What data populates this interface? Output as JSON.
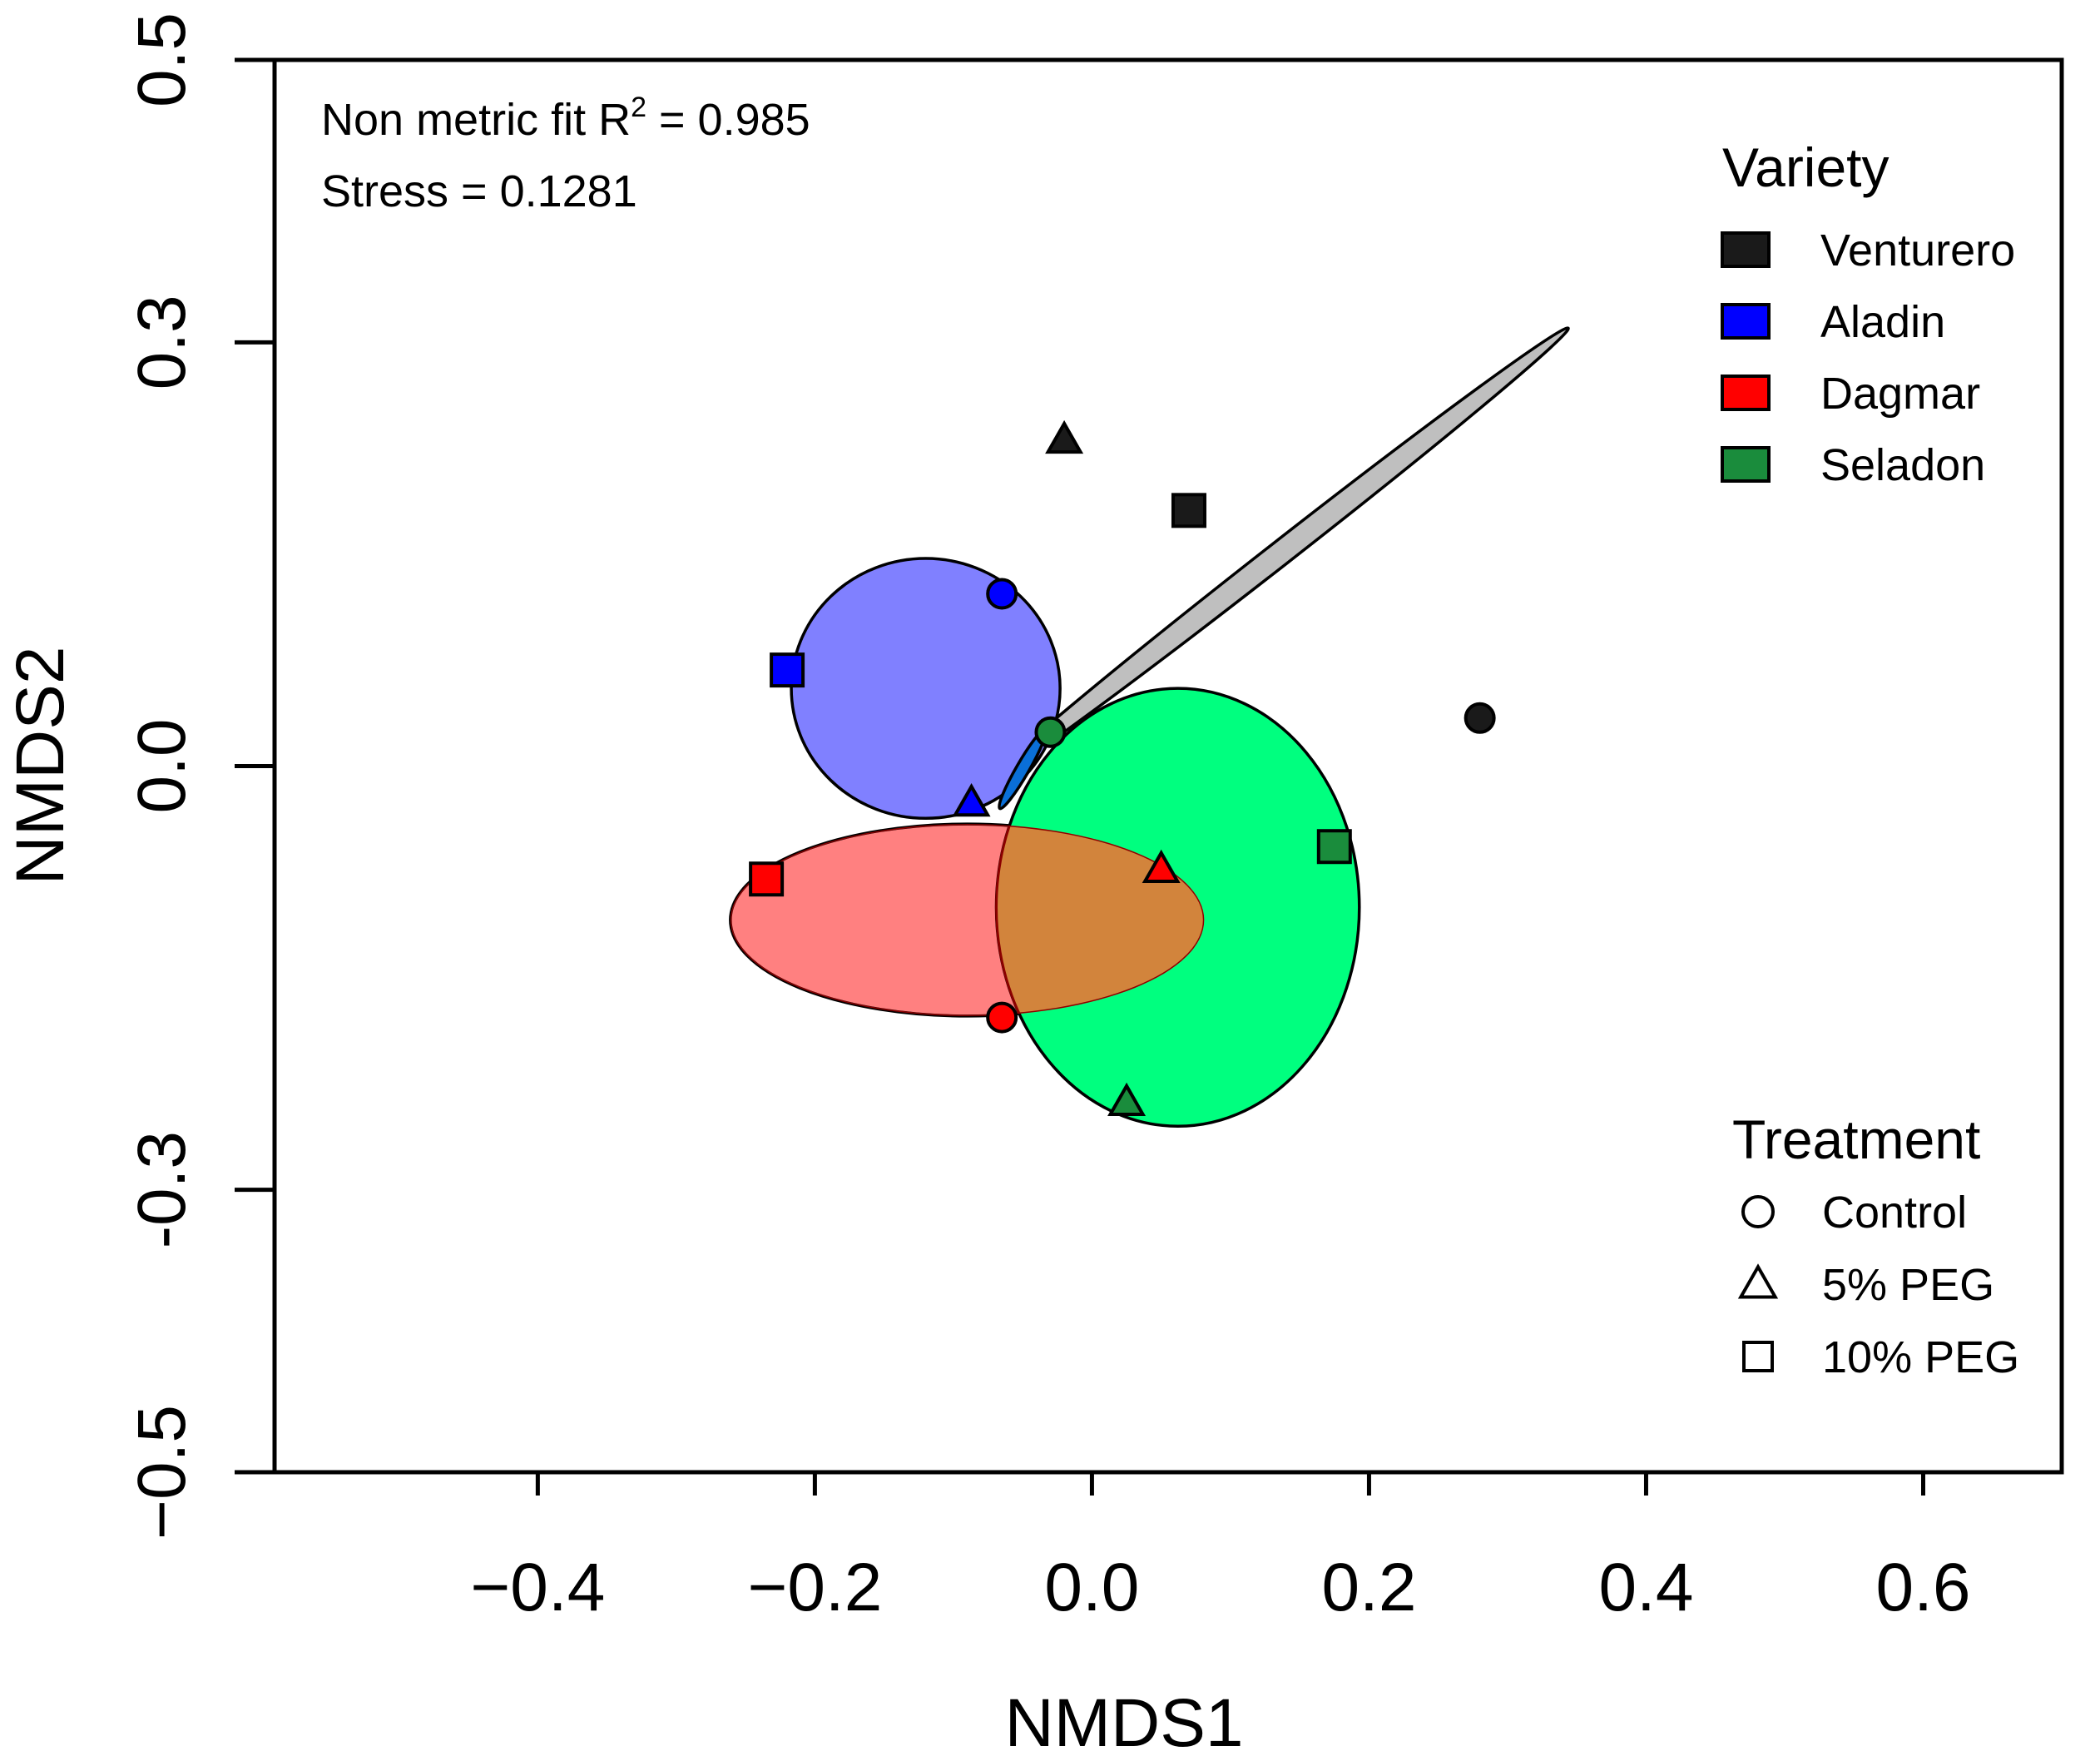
{
  "chart_data": {
    "type": "scatter",
    "title": "",
    "xlabel": "NMDS1",
    "ylabel": "NMDS2",
    "xlim": [
      -0.59,
      0.7
    ],
    "ylim": [
      -0.5,
      0.5
    ],
    "xticks": [
      -0.4,
      -0.2,
      0.0,
      0.2,
      0.4,
      0.6
    ],
    "xtick_labels": [
      "−0.4",
      "−0.2",
      "0.0",
      "0.2",
      "0.4",
      "0.6"
    ],
    "yticks": [
      -0.5,
      -0.3,
      0.0,
      0.3,
      0.5
    ],
    "ytick_labels": [
      "−0.5",
      "-0.3",
      "0.0",
      "0.3",
      "0.5"
    ],
    "grid": false,
    "annotations": {
      "fit_prefix": "Non metric fit R",
      "fit_sup": "2",
      "fit_suffix": " = 0.985",
      "stress": "Stress = 0.1281"
    },
    "legend_variety": {
      "title": "Variety",
      "position": "top-right",
      "entries": [
        {
          "label": "Venturero",
          "color": "#1a1a1a"
        },
        {
          "label": "Aladin",
          "color": "#0000ff"
        },
        {
          "label": "Dagmar",
          "color": "#ff0000"
        },
        {
          "label": "Seladon",
          "color": "#1a8c3c"
        }
      ]
    },
    "legend_treatment": {
      "title": "Treatment",
      "position": "bottom-right",
      "entries": [
        {
          "label": "Control",
          "shape": "circle"
        },
        {
          "label": "5% PEG",
          "shape": "triangle"
        },
        {
          "label": "10% PEG",
          "shape": "square"
        }
      ]
    },
    "ellipses": [
      {
        "variety": "Venturero",
        "cx": 0.135,
        "cy": 0.15,
        "rx": 0.265,
        "ry": 0.0085,
        "angle_deg": -38,
        "fill": "#bfbfbf"
      },
      {
        "variety": "Aladin",
        "cx": -0.12,
        "cy": 0.055,
        "rx": 0.097,
        "ry": 0.092,
        "angle_deg": 0,
        "fill": "#8080ff"
      },
      {
        "variety": "Dagmar",
        "cx": -0.09,
        "cy": -0.109,
        "rx": 0.171,
        "ry": 0.068,
        "angle_deg": 0,
        "fill": "#ff8080"
      },
      {
        "variety": "Seladon",
        "cx": 0.062,
        "cy": -0.1,
        "rx": 0.131,
        "ry": 0.155,
        "angle_deg": 0,
        "fill": "#00ff7f"
      },
      {
        "variety": "Aladin",
        "cx": -0.05,
        "cy": -0.002,
        "rx": 0.033,
        "ry": 0.0045,
        "angle_deg": -60,
        "fill": "#0a6fd8"
      }
    ],
    "overlap_fill": "#d2843c",
    "series": [
      {
        "name": "Venturero",
        "color": "#1a1a1a",
        "points": [
          {
            "treatment": "Control",
            "x": 0.28,
            "y": 0.034
          },
          {
            "treatment": "5% PEG",
            "x": -0.02,
            "y": 0.231
          },
          {
            "treatment": "10% PEG",
            "x": 0.07,
            "y": 0.181
          }
        ]
      },
      {
        "name": "Aladin",
        "color": "#0000ff",
        "points": [
          {
            "treatment": "Control",
            "x": -0.065,
            "y": 0.122
          },
          {
            "treatment": "5% PEG",
            "x": -0.087,
            "y": -0.026
          },
          {
            "treatment": "10% PEG",
            "x": -0.22,
            "y": 0.068
          }
        ]
      },
      {
        "name": "Dagmar",
        "color": "#ff0000",
        "points": [
          {
            "treatment": "Control",
            "x": -0.065,
            "y": -0.178
          },
          {
            "treatment": "5% PEG",
            "x": 0.05,
            "y": -0.073
          },
          {
            "treatment": "10% PEG",
            "x": -0.235,
            "y": -0.08
          }
        ]
      },
      {
        "name": "Seladon",
        "color": "#1a8c3c",
        "points": [
          {
            "treatment": "Control",
            "x": -0.03,
            "y": 0.024
          },
          {
            "treatment": "5% PEG",
            "x": 0.025,
            "y": -0.238
          },
          {
            "treatment": "10% PEG",
            "x": 0.175,
            "y": -0.057
          }
        ]
      }
    ]
  }
}
